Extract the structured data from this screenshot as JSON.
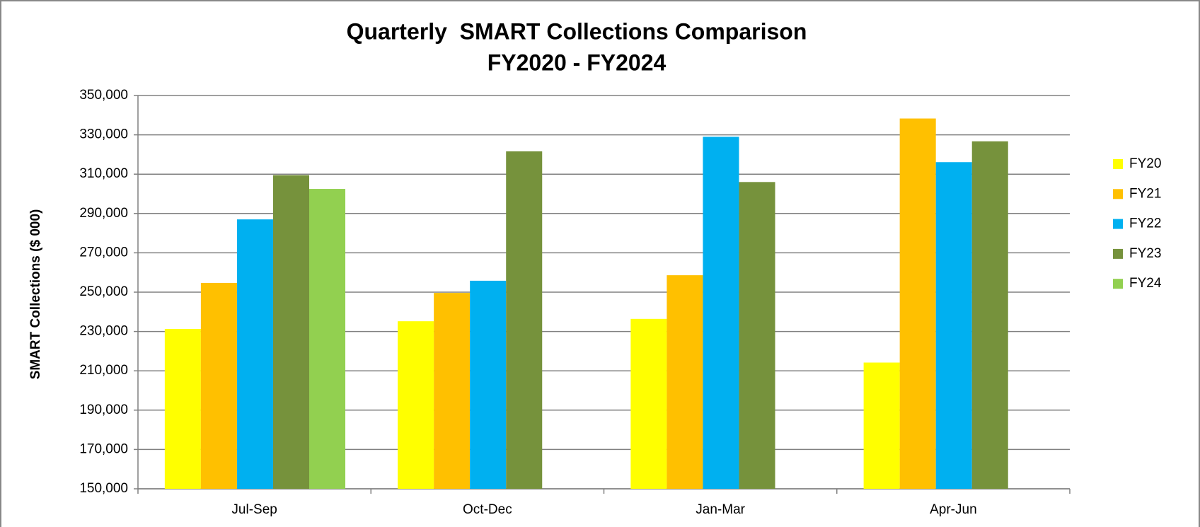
{
  "chart_data": {
    "type": "bar",
    "title": [
      "Quarterly  SMART Collections Comparison",
      "FY2020 - FY2024"
    ],
    "y_label": "SMART Collections ($ 000)",
    "categories": [
      "Jul-Sep",
      "Oct-Dec",
      "Jan-Mar",
      "Apr-Jun"
    ],
    "series": [
      {
        "name": "FY20",
        "color": "#ffff00",
        "values": [
          231300,
          235200,
          236400,
          214200
        ]
      },
      {
        "name": "FY21",
        "color": "#ffc000",
        "values": [
          254700,
          249600,
          258600,
          338300
        ]
      },
      {
        "name": "FY22",
        "color": "#00b0f0",
        "values": [
          287000,
          255800,
          329000,
          316100
        ]
      },
      {
        "name": "FY23",
        "color": "#76923c",
        "values": [
          309500,
          321600,
          306000,
          326700
        ]
      },
      {
        "name": "FY24",
        "color": "#92d050",
        "values": [
          302500,
          null,
          null,
          null
        ]
      }
    ],
    "ylim": [
      150000,
      350000
    ],
    "yticks": [
      {
        "value": 150000,
        "label": "150,000"
      },
      {
        "value": 170000,
        "label": "170,000"
      },
      {
        "value": 190000,
        "label": "190,000"
      },
      {
        "value": 210000,
        "label": "210,000"
      },
      {
        "value": 230000,
        "label": "230,000"
      },
      {
        "value": 250000,
        "label": "250,000"
      },
      {
        "value": 270000,
        "label": "270,000"
      },
      {
        "value": 290000,
        "label": "290,000"
      },
      {
        "value": 310000,
        "label": "310,000"
      },
      {
        "value": 330000,
        "label": "330,000"
      },
      {
        "value": 350000,
        "label": "350,000"
      }
    ],
    "grid": true,
    "legend": "right"
  }
}
